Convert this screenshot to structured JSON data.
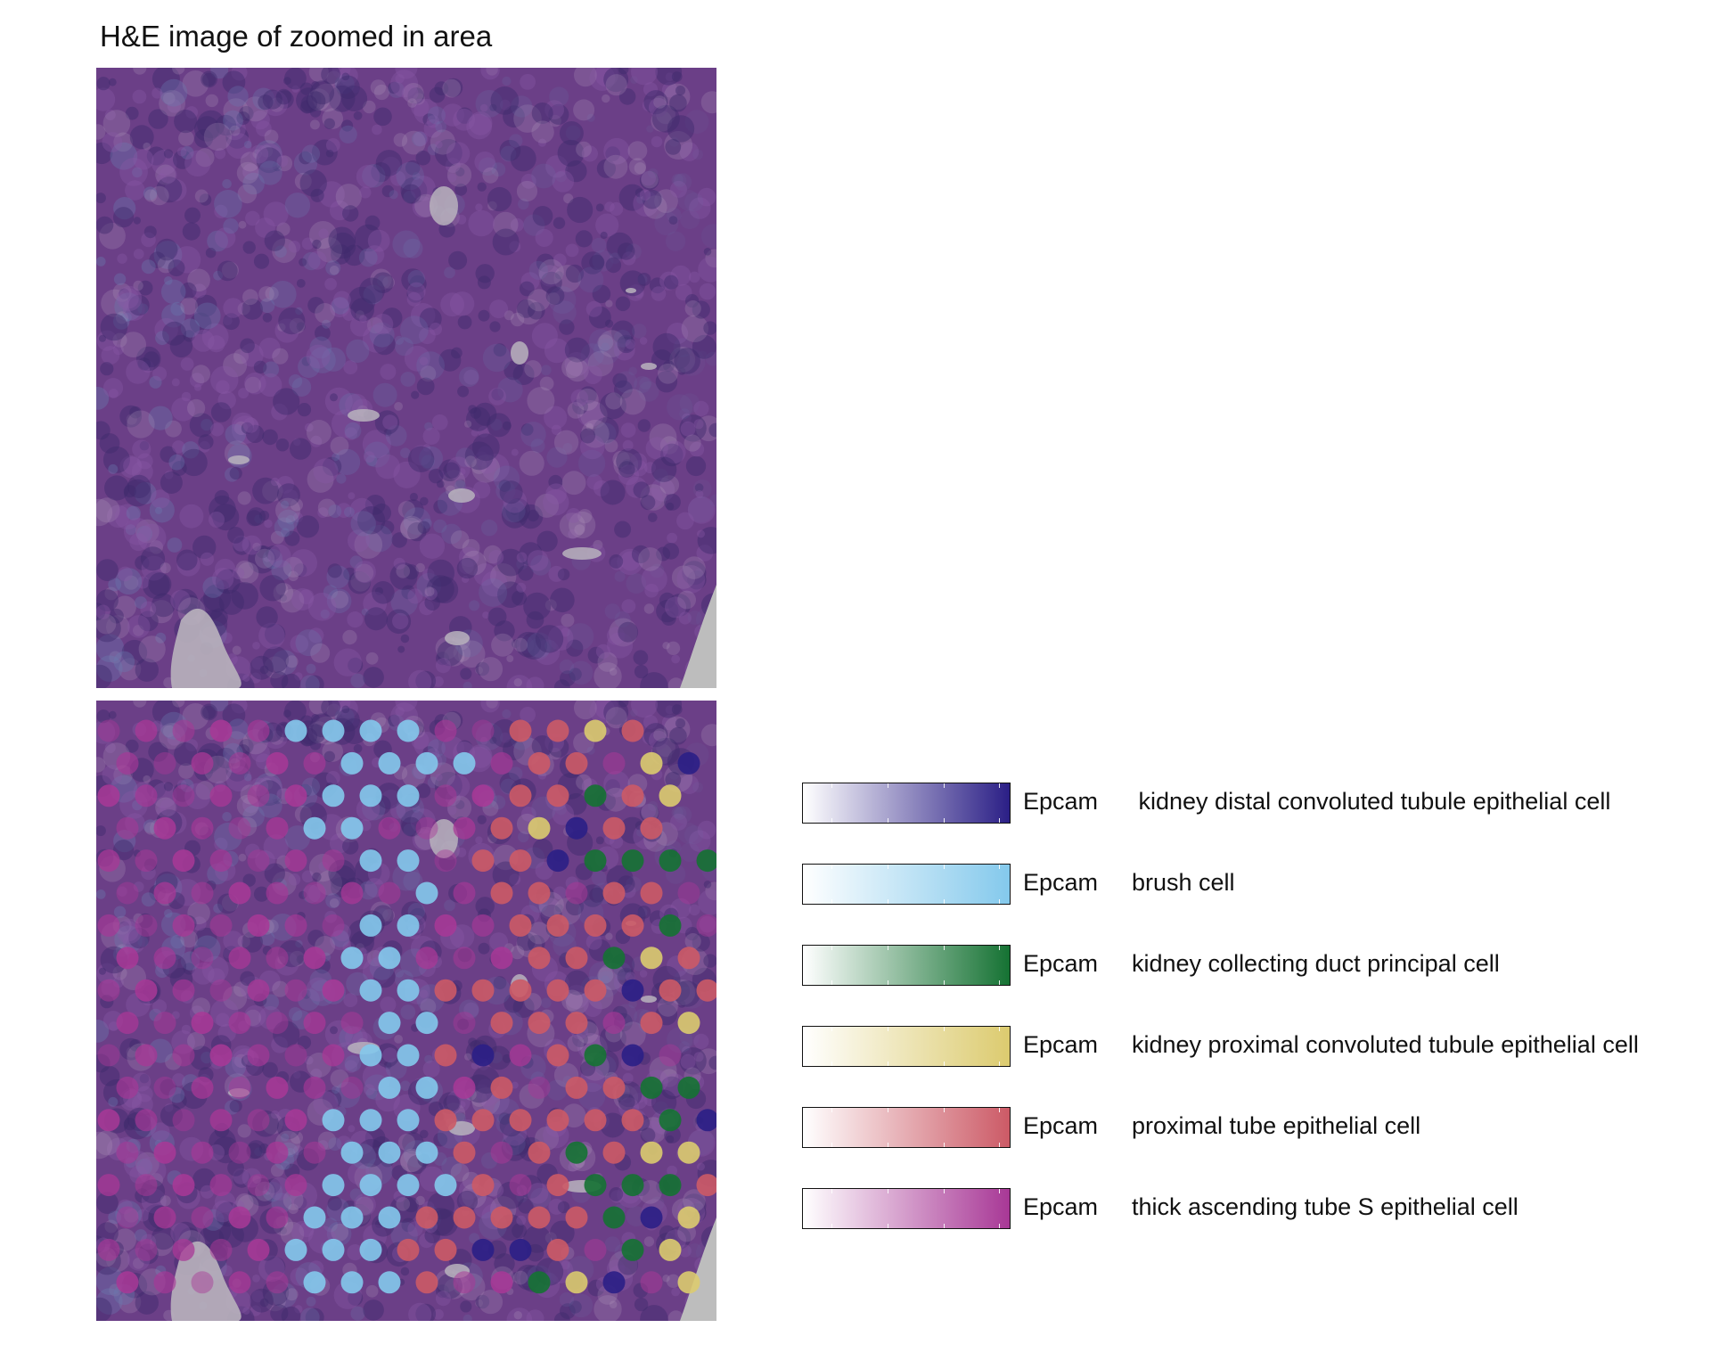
{
  "title": "H&E image of zoomed in area",
  "legend": [
    {
      "gene": "Epcam",
      "cell_type": " kidney distal convoluted tubule epithelial cell",
      "color": "#2b1f86"
    },
    {
      "gene": "Epcam",
      "cell_type": "brush cell",
      "color": "#84c9ec"
    },
    {
      "gene": "Epcam",
      "cell_type": "kidney collecting duct principal cell",
      "color": "#157233"
    },
    {
      "gene": "Epcam",
      "cell_type": "kidney proximal convoluted tubule epithelial cell",
      "color": "#dccb6f"
    },
    {
      "gene": "Epcam",
      "cell_type": "proximal tube epithelial cell",
      "color": "#cc5a66"
    },
    {
      "gene": "Epcam",
      "cell_type": "thick ascending tube S epithelial cell",
      "color": "#a83896"
    }
  ],
  "tissue_colors": {
    "base": "#6b3f87",
    "dark": "#3e2a6c",
    "light": "#b9a2c4",
    "blue": "#6a7bb0",
    "lumen": "#b9b3bd"
  },
  "spot_map": [
    "SSSSSBBBBSSRRYR",
    "SSSSSSBBBBSRRSYD",
    "SSSSSSBBBSSRRGRY",
    "SSSSSBBSSSRYDRR",
    "SSSSSSSBBSRRDGGGG",
    "SSSSSSSSBSRRSRRS",
    "SSSSSSSBBSSRRRRGS",
    "SSSSSSBBSSSRRGYR",
    "SSSSSSSBBRRRRRDRR",
    "SSSSSSSBBSRRRSRYD",
    "SSSSSSSBBRDSRGDS",
    "SSSSSSSBBSRSRRGGS",
    "SSSSSSBBBRRRRRRGD",
    "SSSSSSBBBRSRGRYY",
    "SSSSSSBBBBRSRGGGRD",
    "SSSSSBBBRRRRRGDY",
    "SSSSSBBBRRDDRSGY",
    "SSSSSBBBRSSGYDSY"
  ]
}
